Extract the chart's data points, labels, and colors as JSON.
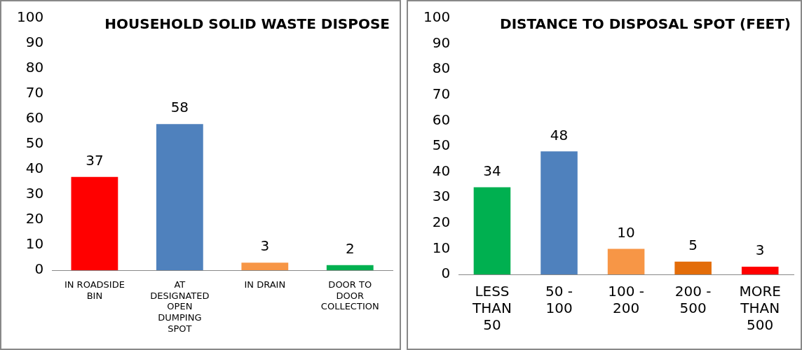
{
  "chart_data": [
    {
      "type": "bar",
      "title": "HOUSEHOLD SOLID WASTE DISPOSE",
      "categories": [
        "IN ROADSIDE BIN",
        "AT DESIGNATED OPEN DUMPING SPOT",
        "IN DRAIN",
        "DOOR TO DOOR COLLECTION"
      ],
      "values": [
        37,
        58,
        3,
        2
      ],
      "colors": [
        "#ff0000",
        "#4f81bd",
        "#f79646",
        "#00b050"
      ],
      "ylim": [
        0,
        100
      ],
      "yticks": [
        0,
        10,
        20,
        30,
        40,
        50,
        60,
        70,
        80,
        90,
        100
      ],
      "data_labels": true,
      "grid": false,
      "legend": false
    },
    {
      "type": "bar",
      "title": "DISTANCE TO DISPOSAL SPOT (FEET)",
      "categories": [
        "LESS THAN 50",
        "50 - 100",
        "100 - 200",
        "200 - 500",
        "MORE THAN 500"
      ],
      "values": [
        34,
        48,
        10,
        5,
        3
      ],
      "colors": [
        "#00b050",
        "#4f81bd",
        "#f79646",
        "#e36c09",
        "#ff0000"
      ],
      "ylim": [
        0,
        100
      ],
      "yticks": [
        0,
        10,
        20,
        30,
        40,
        50,
        60,
        70,
        80,
        90,
        100
      ],
      "data_labels": true,
      "grid": false,
      "legend": false
    }
  ]
}
